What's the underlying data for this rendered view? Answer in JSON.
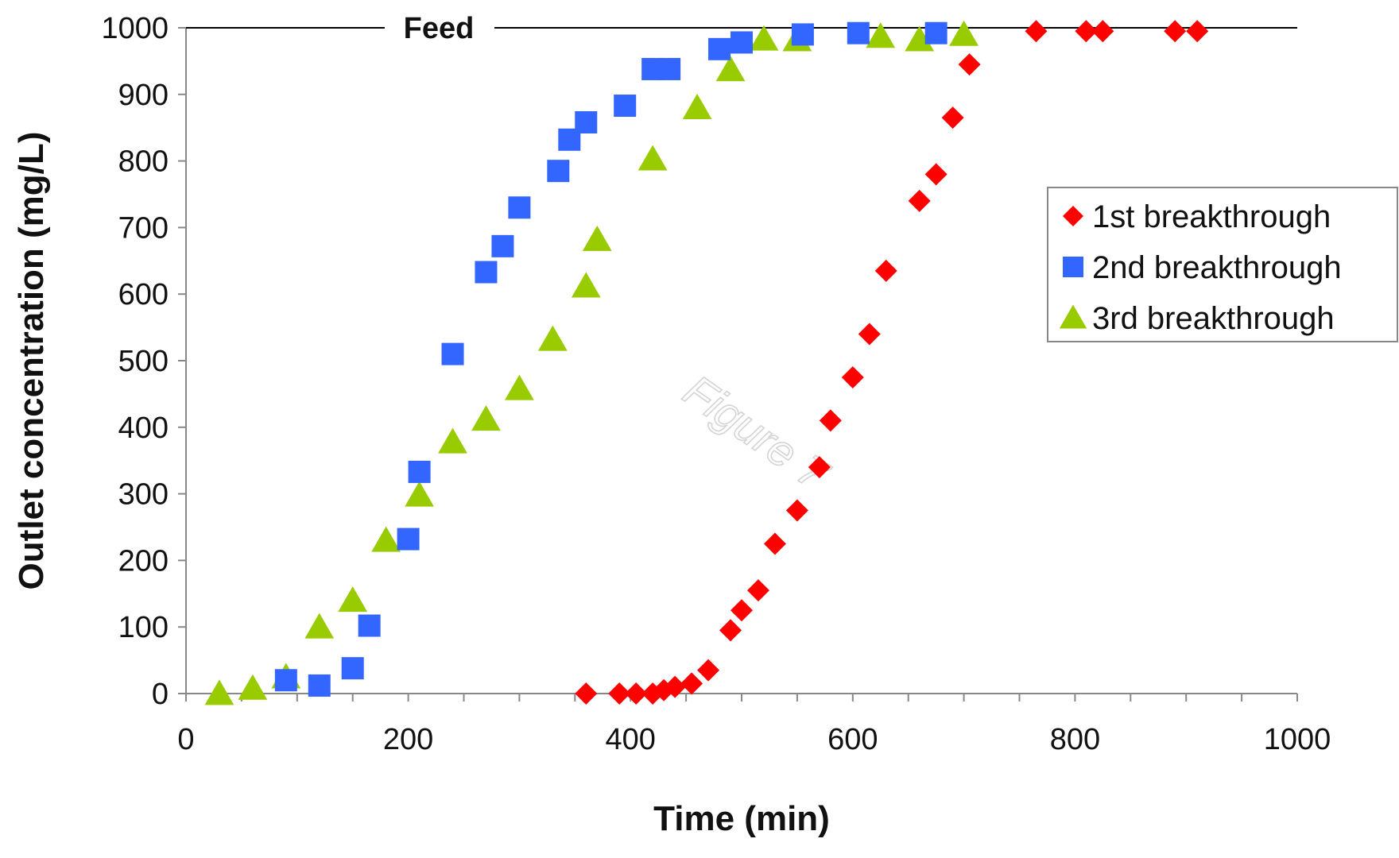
{
  "chart_data": {
    "type": "scatter",
    "title": "",
    "xlabel": "Time (min)",
    "ylabel": "Outlet concentration (mg/L)",
    "xlim": [
      0,
      1000
    ],
    "ylim": [
      0,
      1000
    ],
    "x_ticks": [
      0,
      200,
      400,
      600,
      800,
      1000
    ],
    "y_ticks": [
      0,
      100,
      200,
      300,
      400,
      500,
      600,
      700,
      800,
      900,
      1000
    ],
    "grid": false,
    "legend_position": "right",
    "reference_line": {
      "label": "Feed",
      "y": 1000
    },
    "watermark": "Figure 7",
    "series": [
      {
        "name": "1st breakthrough",
        "marker": "diamond",
        "color": "#ff0000",
        "x": [
          360,
          390,
          405,
          420,
          430,
          440,
          455,
          470,
          490,
          500,
          515,
          530,
          550,
          570,
          580,
          600,
          615,
          630,
          660,
          675,
          690,
          705,
          765,
          810,
          825,
          890,
          910
        ],
        "y": [
          0,
          0,
          0,
          0,
          5,
          10,
          15,
          35,
          95,
          125,
          155,
          225,
          275,
          340,
          410,
          475,
          540,
          635,
          740,
          780,
          865,
          945,
          995,
          995,
          995,
          995,
          995
        ]
      },
      {
        "name": "2nd breakthrough",
        "marker": "square",
        "color": "#3366ff",
        "x": [
          90,
          120,
          150,
          165,
          200,
          210,
          240,
          270,
          285,
          300,
          335,
          345,
          360,
          395,
          420,
          435,
          480,
          500,
          555,
          605,
          675
        ],
        "y": [
          20,
          12,
          38,
          102,
          232,
          333,
          510,
          633,
          672,
          730,
          785,
          832,
          858,
          883,
          938,
          938,
          968,
          978,
          990,
          992,
          992
        ]
      },
      {
        "name": "3rd breakthrough",
        "marker": "triangle",
        "color": "#99cc00",
        "x": [
          30,
          60,
          90,
          120,
          150,
          180,
          210,
          240,
          270,
          300,
          330,
          360,
          370,
          420,
          460,
          490,
          520,
          550,
          625,
          660,
          700
        ],
        "y": [
          0,
          8,
          25,
          100,
          140,
          230,
          298,
          378,
          412,
          458,
          532,
          612,
          682,
          803,
          880,
          937,
          983,
          982,
          987,
          982,
          990
        ]
      }
    ]
  }
}
